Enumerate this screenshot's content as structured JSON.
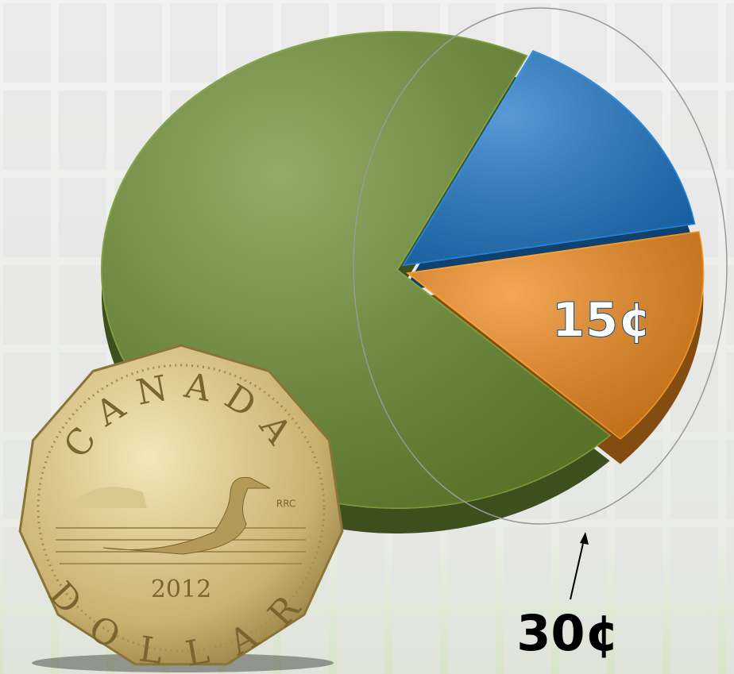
{
  "chart_data": {
    "type": "pie",
    "values": [
      15,
      15,
      70
    ],
    "value_labels": [
      null,
      "15¢",
      null
    ],
    "colors": [
      "#1f78c8",
      "#ef8a1e",
      "#6f8f34"
    ],
    "annotation": "30¢"
  },
  "coin": {
    "top": "CANADA",
    "bottom": "DOLLAR",
    "year": "2012",
    "mint": "RRC"
  }
}
